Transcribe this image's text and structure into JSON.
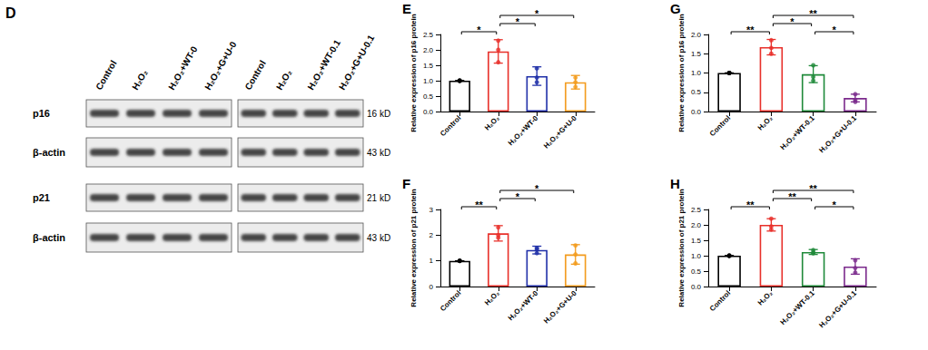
{
  "blot": {
    "panel": "D",
    "lanes": [
      [
        "Control",
        "H₂O₂",
        "H₂O₂+WT-0",
        "H₂O₂+G+U-0"
      ],
      [
        "Control",
        "H₂O₂",
        "H₂O₂+WT-0.1",
        "H₂O₂+G+U-0.1"
      ]
    ],
    "rows": [
      {
        "protein": "p16",
        "size": "16 kD"
      },
      {
        "protein": "β-actin",
        "size": "43 kD"
      },
      {
        "protein": "p21",
        "size": "21 kD"
      },
      {
        "protein": "β-actin",
        "size": "43 kD"
      }
    ]
  },
  "chart_data": [
    {
      "type": "bar",
      "title": "E",
      "ylabel": "Relative expression of p16 protein",
      "categories": [
        "Control",
        "H₂O₂",
        "H₂O₂+WT-0",
        "H₂O₂+G+U-0"
      ],
      "values": [
        1.0,
        1.95,
        1.15,
        0.95
      ],
      "errors": [
        0,
        0.38,
        0.3,
        0.22
      ],
      "points": [
        [
          1,
          1,
          1
        ],
        [
          2.0,
          1.6,
          2.3
        ],
        [
          1.4,
          0.95,
          1.1
        ],
        [
          1.1,
          0.95,
          0.8
        ]
      ],
      "colors": [
        "#000000",
        "#e8302a",
        "#1f2fa8",
        "#f39b1c"
      ],
      "ylim": [
        0,
        2.5
      ],
      "yticks": [
        {
          "value": 0,
          "label": "0.0"
        },
        {
          "value": 0.5,
          "label": "0.5"
        },
        {
          "value": 1,
          "label": "1.0"
        },
        {
          "value": 1.5,
          "label": "1.5"
        },
        {
          "value": 2,
          "label": "2.0"
        },
        {
          "value": 2.5,
          "label": "2.5"
        }
      ],
      "annotations": [
        {
          "from": "Control",
          "to": "H₂O₂",
          "label": "*"
        },
        {
          "from": "H₂O₂",
          "to": "H₂O₂+WT-0",
          "label": "*"
        },
        {
          "from": "H₂O₂",
          "to": "H₂O₂+G+U-0",
          "label": "*"
        }
      ],
      "grid": false
    },
    {
      "type": "bar",
      "title": "F",
      "ylabel": "Relative expression of p21 protein",
      "categories": [
        "Control",
        "H₂O₂",
        "H₂O₂+WT-0",
        "H₂O₂+G+U-0"
      ],
      "values": [
        1.0,
        2.07,
        1.42,
        1.25
      ],
      "errors": [
        0,
        0.3,
        0.15,
        0.38
      ],
      "points": [
        [
          1,
          1,
          1
        ],
        [
          2.3,
          1.9,
          2.0
        ],
        [
          1.5,
          1.3,
          1.45
        ],
        [
          1.6,
          0.9,
          1.25
        ]
      ],
      "colors": [
        "#000000",
        "#e8302a",
        "#1f2fa8",
        "#f39b1c"
      ],
      "ylim": [
        0,
        3
      ],
      "yticks": [
        0,
        1,
        2,
        3
      ],
      "annotations": [
        {
          "from": "Control",
          "to": "H₂O₂",
          "label": "**"
        },
        {
          "from": "H₂O₂",
          "to": "H₂O₂+WT-0",
          "label": "*"
        },
        {
          "from": "H₂O₂",
          "to": "H₂O₂+G+U-0",
          "label": "*"
        }
      ],
      "grid": false
    },
    {
      "type": "bar",
      "title": "G",
      "ylabel": "Relative expression of p16 protein",
      "categories": [
        "Control",
        "H₂O₂",
        "H₂O₂+WT-0.1",
        "H₂O₂+G+U-0.1"
      ],
      "values": [
        1.0,
        1.67,
        0.97,
        0.35
      ],
      "errors": [
        0,
        0.2,
        0.22,
        0.1
      ],
      "points": [
        [
          1,
          1,
          1
        ],
        [
          1.85,
          1.65,
          1.5
        ],
        [
          1.2,
          0.9,
          0.8
        ],
        [
          0.45,
          0.3,
          0.25
        ]
      ],
      "colors": [
        "#000000",
        "#e8302a",
        "#1f8a3a",
        "#7b2a8c"
      ],
      "ylim": [
        0,
        2
      ],
      "yticks": [
        {
          "value": 0,
          "label": "0.0"
        },
        {
          "value": 0.5,
          "label": "0.5"
        },
        {
          "value": 1,
          "label": "1.0"
        },
        {
          "value": 1.5,
          "label": "1.5"
        },
        {
          "value": 2,
          "label": "2.0"
        }
      ],
      "annotations": [
        {
          "from": "Control",
          "to": "H₂O₂",
          "label": "**"
        },
        {
          "from": "H₂O₂",
          "to": "H₂O₂+WT-0.1",
          "label": "*"
        },
        {
          "from": "H₂O₂+WT-0.1",
          "to": "H₂O₂+G+U-0.1",
          "label": "*"
        },
        {
          "from": "H₂O₂",
          "to": "H₂O₂+G+U-0.1",
          "label": "**"
        }
      ],
      "grid": false
    },
    {
      "type": "bar",
      "title": "H",
      "ylabel": "Relative expression of p21 protein",
      "categories": [
        "Control",
        "H₂O₂",
        "H₂O₂+WT-0.1",
        "H₂O₂+G+U-0.1"
      ],
      "values": [
        1.0,
        2.0,
        1.12,
        0.65
      ],
      "errors": [
        0,
        0.2,
        0.08,
        0.25
      ],
      "points": [
        [
          1,
          1,
          1
        ],
        [
          2.2,
          1.85,
          1.95
        ],
        [
          1.18,
          1.08,
          1.1
        ],
        [
          0.85,
          0.6,
          0.45
        ]
      ],
      "colors": [
        "#000000",
        "#e8302a",
        "#1f8a3a",
        "#7b2a8c"
      ],
      "ylim": [
        0,
        2.5
      ],
      "yticks": [
        {
          "value": 0,
          "label": "0.0"
        },
        {
          "value": 0.5,
          "label": "0.5"
        },
        {
          "value": 1,
          "label": "1.0"
        },
        {
          "value": 1.5,
          "label": "1.5"
        },
        {
          "value": 2,
          "label": "2.0"
        },
        {
          "value": 2.5,
          "label": "2.5"
        }
      ],
      "annotations": [
        {
          "from": "Control",
          "to": "H₂O₂",
          "label": "**"
        },
        {
          "from": "H₂O₂",
          "to": "H₂O₂+WT-0.1",
          "label": "**"
        },
        {
          "from": "H₂O₂+WT-0.1",
          "to": "H₂O₂+G+U-0.1",
          "label": "*"
        },
        {
          "from": "H₂O₂",
          "to": "H₂O₂+G+U-0.1",
          "label": "**"
        }
      ],
      "grid": false
    }
  ]
}
